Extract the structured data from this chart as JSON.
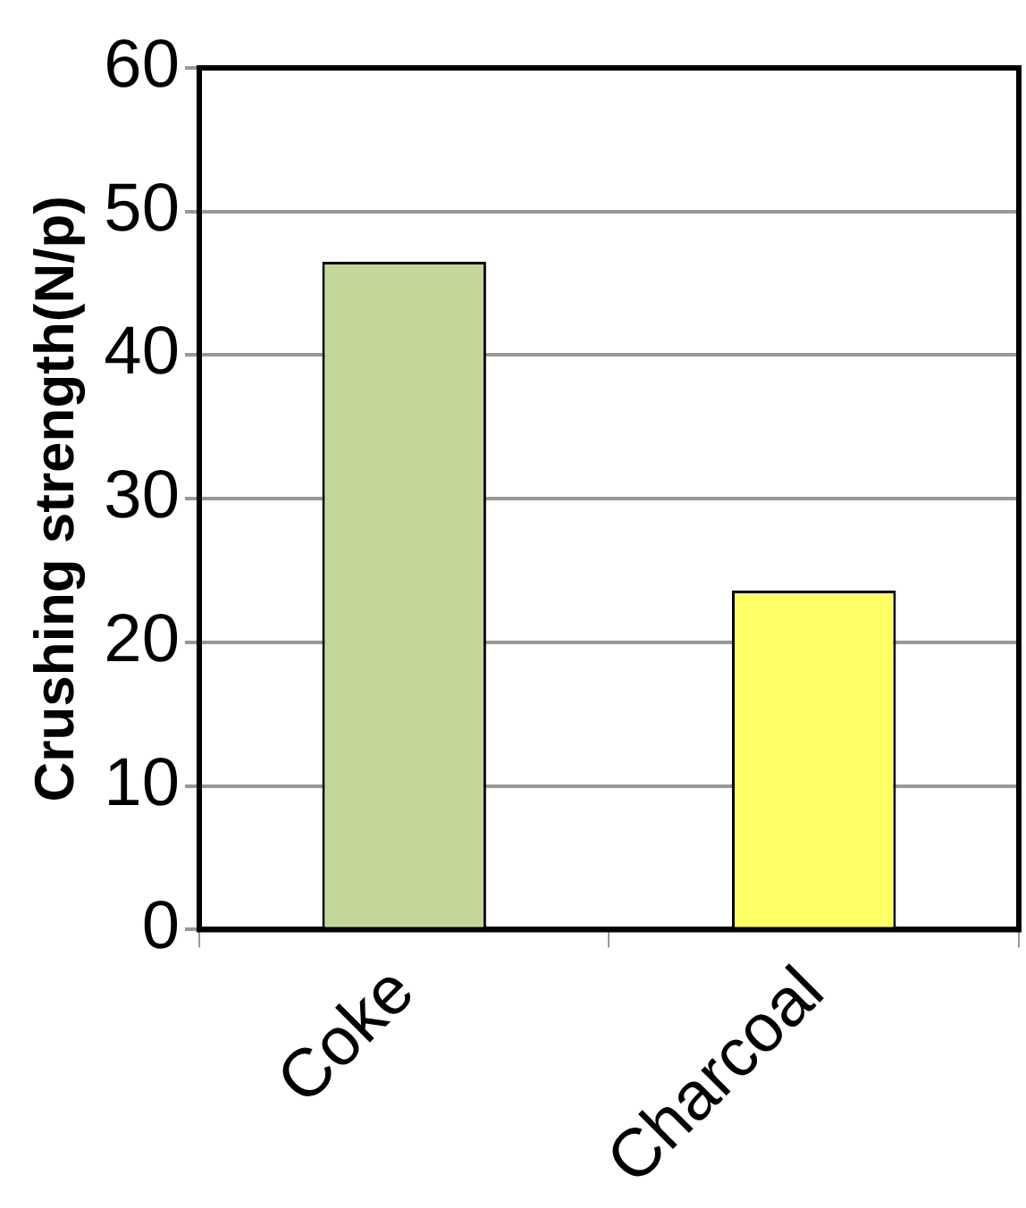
{
  "chart_data": {
    "type": "bar",
    "ylabel": "Crushing strength(N/p)",
    "categories": [
      "Coke",
      "Charcoal"
    ],
    "values": [
      46.5,
      23.6
    ],
    "colors": [
      "#c4d79b",
      "#ffff66"
    ],
    "ylim": [
      0,
      60
    ],
    "yticks": [
      0,
      10,
      20,
      30,
      40,
      50,
      60
    ],
    "grid": "y",
    "legend": false
  }
}
